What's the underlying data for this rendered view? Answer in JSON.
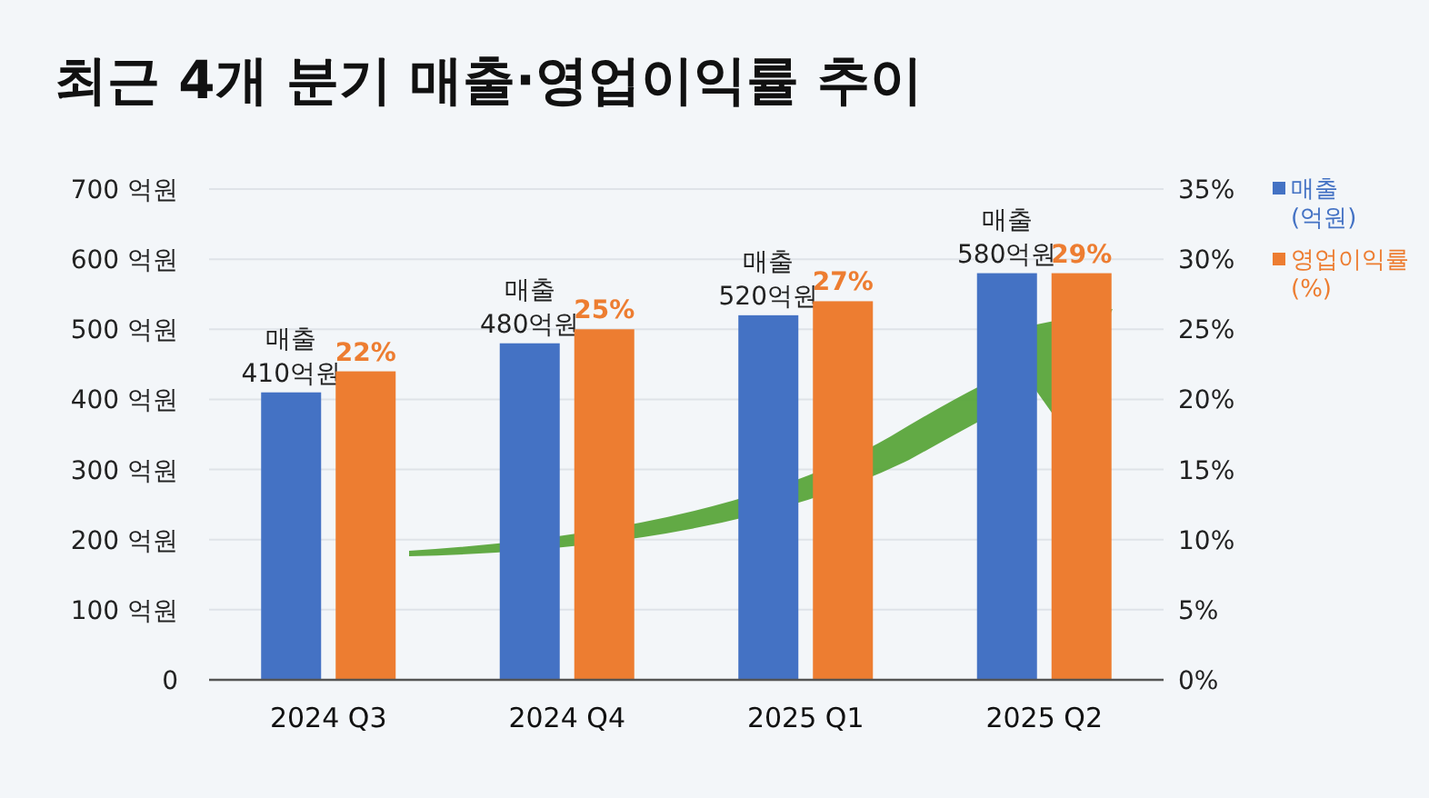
{
  "chart_data": {
    "type": "bar",
    "title": "최근 4개 분기 매출·영업이익률 추이",
    "categories": [
      "2024 Q3",
      "2024 Q4",
      "2025 Q1",
      "2025 Q2"
    ],
    "series": [
      {
        "name": "매출 (억원)",
        "color": "#4472c4",
        "values": [
          410,
          480,
          520,
          580
        ],
        "value_labels": [
          "매출\n410억원",
          "매출\n480억원",
          "매출\n520억원",
          "매출\n580억원"
        ]
      },
      {
        "name": "영업이익률 (%)",
        "color": "#ed7d31",
        "axis": "y2",
        "values": [
          22,
          25,
          27,
          29
        ],
        "value_labels": [
          "22%",
          "25%",
          "27%",
          "29%"
        ]
      }
    ],
    "ylim": [
      0,
      700
    ],
    "yticks": [
      0,
      {
        "value": 100,
        "label": "100 억원"
      },
      {
        "value": 200,
        "label": "200 억원"
      },
      {
        "value": 300,
        "label": "300 억원"
      },
      {
        "value": 400,
        "label": "400 억원"
      },
      {
        "value": 500,
        "label": "500 억원"
      },
      {
        "value": 600,
        "label": "600 억원"
      },
      {
        "value": 700,
        "label": "700 억원"
      }
    ],
    "y2lim": [
      0,
      35
    ],
    "y2ticks": [
      {
        "value": 0,
        "label": "0%"
      },
      {
        "value": 5,
        "label": "5%"
      },
      {
        "value": 10,
        "label": "10%"
      },
      {
        "value": 15,
        "label": "15%"
      },
      {
        "value": 20,
        "label": "20%"
      },
      {
        "value": 25,
        "label": "25%"
      },
      {
        "value": 30,
        "label": "30%"
      },
      {
        "value": 35,
        "label": "35%"
      }
    ],
    "grid": "y",
    "legend": "right"
  }
}
